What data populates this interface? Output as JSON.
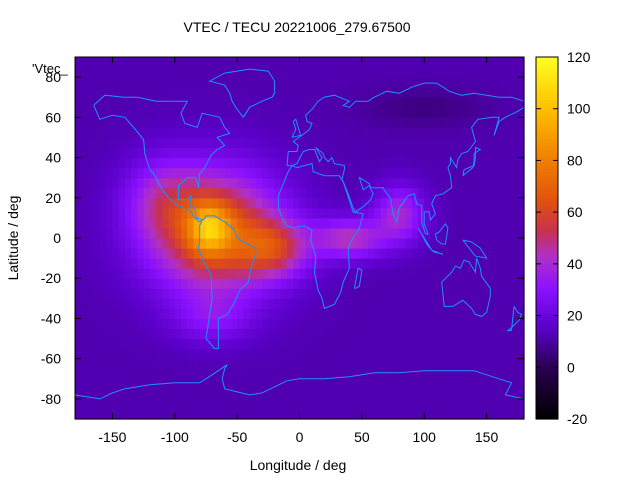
{
  "chart_data": {
    "type": "heatmap",
    "title": "VTEC / TECU 20221006_279.67500",
    "xlabel": "Longitude / deg",
    "ylabel": "Latitude / deg",
    "series_label": "'Vtec_",
    "xlim": [
      -180,
      180
    ],
    "ylim": [
      -90,
      90
    ],
    "x_ticks": [
      -150,
      -100,
      -50,
      0,
      50,
      100,
      150
    ],
    "y_ticks": [
      -80,
      -60,
      -40,
      -20,
      0,
      20,
      40,
      60,
      80
    ],
    "colorbar": {
      "range": [
        -20,
        120
      ],
      "ticks": [
        -20,
        0,
        20,
        40,
        60,
        80,
        100,
        120
      ],
      "palette": [
        [
          0.0,
          "#000000"
        ],
        [
          0.143,
          "#2a0050"
        ],
        [
          0.25,
          "#5a00c8"
        ],
        [
          0.357,
          "#8a10ff"
        ],
        [
          0.45,
          "#b030c8"
        ],
        [
          0.52,
          "#c83050"
        ],
        [
          0.6,
          "#e05010"
        ],
        [
          0.72,
          "#f08000"
        ],
        [
          0.86,
          "#ffc000"
        ],
        [
          1.0,
          "#ffff20"
        ]
      ]
    },
    "tec_field": {
      "background": 12,
      "hotspots": [
        {
          "lon": -68,
          "lat": 3,
          "amp": 58,
          "slon": 52,
          "slat": 30
        },
        {
          "lon": -72,
          "lat": 5,
          "amp": 38,
          "slon": 16,
          "slat": 12
        },
        {
          "lon": -20,
          "lat": -5,
          "amp": 32,
          "slon": 28,
          "slat": 14
        },
        {
          "lon": 40,
          "lat": 0,
          "amp": 32,
          "slon": 28,
          "slat": 10
        },
        {
          "lon": 80,
          "lat": 12,
          "amp": 28,
          "slon": 20,
          "slat": 14
        },
        {
          "lon": -110,
          "lat": 20,
          "amp": 18,
          "slon": 30,
          "slat": 20
        },
        {
          "lon": -70,
          "lat": -40,
          "amp": 14,
          "slon": 30,
          "slat": 12
        }
      ],
      "cool_zones": [
        {
          "lon": 100,
          "lat": 65,
          "amp": -6,
          "slon": 50,
          "slat": 10
        }
      ]
    },
    "colors": {
      "coastline": "#1e90ff",
      "frame": "#000000"
    }
  }
}
